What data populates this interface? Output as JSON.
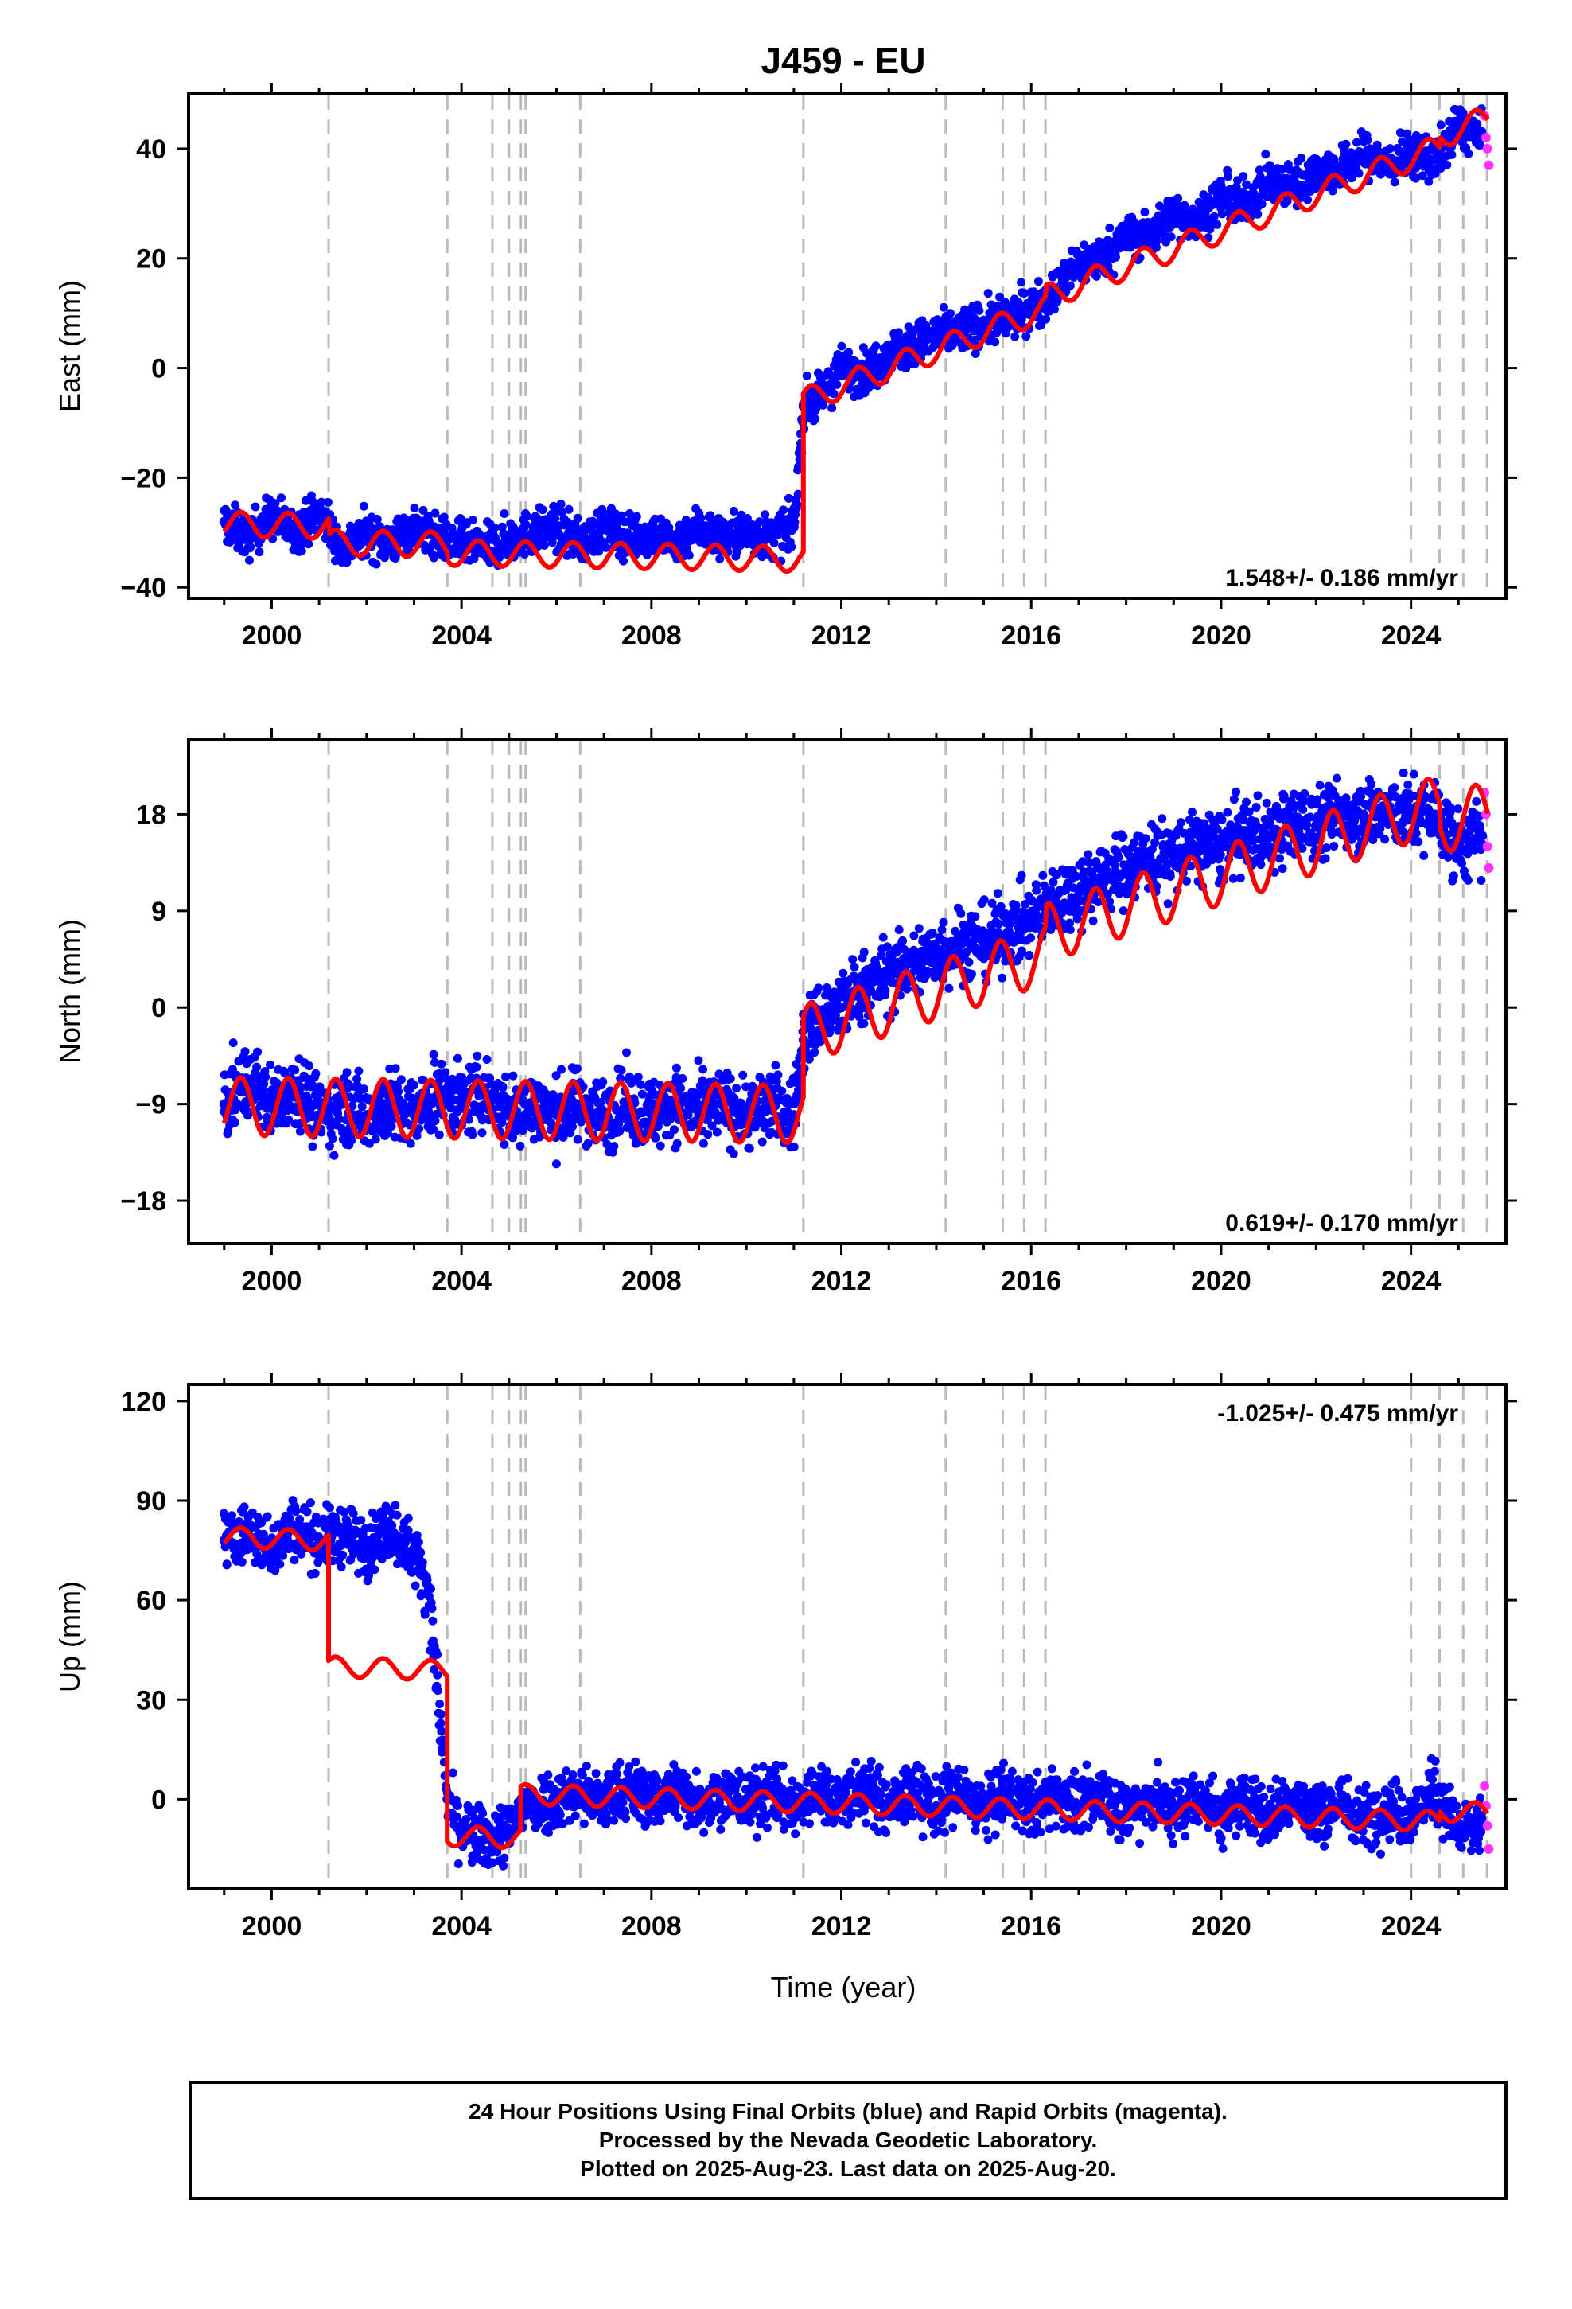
{
  "title": "J459 - EU",
  "xlabel": "Time (year)",
  "caption": {
    "line1": "24 Hour Positions Using Final Orbits (blue) and Rapid Orbits (magenta).",
    "line2": "Processed by the Nevada Geodetic Laboratory.",
    "line3": "Plotted on 2025-Aug-23. Last data on 2025-Aug-20."
  },
  "colors": {
    "final_orbits": "#0000ff",
    "rapid_orbits": "#ff33ff",
    "model": "#ff0000",
    "event_lines": "#bbbbbb",
    "frame": "#000000"
  },
  "chart_data": [
    {
      "type": "scatter",
      "panel": "east",
      "ylabel": "East (mm)",
      "xlim": [
        1998.25,
        2026.0
      ],
      "ylim": [
        -42,
        50
      ],
      "xticks": [
        "2000",
        "2004",
        "2008",
        "2012",
        "2016",
        "2020",
        "2024"
      ],
      "yticks": [
        "40",
        "20",
        "0",
        "−20",
        "−40"
      ],
      "ytick_values": [
        40,
        20,
        0,
        -20,
        -40
      ],
      "rate_label": "1.548+/- 0.186 mm/yr",
      "rate_position": "bottom-right",
      "event_lines": [
        2001.2,
        2003.7,
        2004.65,
        2005.0,
        2005.25,
        2005.35,
        2006.5,
        2011.2,
        2014.2,
        2015.4,
        2015.85,
        2016.3,
        2024.0,
        2024.6,
        2025.1,
        2025.6
      ],
      "series": [
        {
          "name": "Final Orbits",
          "color": "#0000ff",
          "x": [
            1999.0,
            1999.5,
            2000.0,
            2000.5,
            2001.0,
            2001.5,
            2002.0,
            2002.5,
            2003.0,
            2003.5,
            2004.0,
            2004.5,
            2005.0,
            2005.5,
            2006.0,
            2006.5,
            2007.0,
            2007.5,
            2008.0,
            2008.5,
            2009.0,
            2009.5,
            2010.0,
            2010.5,
            2011.0,
            2011.2,
            2011.5,
            2012.0,
            2012.5,
            2013.0,
            2013.5,
            2014.0,
            2014.5,
            2015.0,
            2015.5,
            2016.0,
            2016.5,
            2017.0,
            2017.5,
            2018.0,
            2018.5,
            2019.0,
            2019.5,
            2020.0,
            2020.5,
            2021.0,
            2021.5,
            2022.0,
            2022.5,
            2023.0,
            2023.5,
            2024.0,
            2024.5,
            2025.0,
            2025.5
          ],
          "y": [
            -28,
            -31,
            -27,
            -30,
            -26,
            -33,
            -30,
            -32,
            -29,
            -31,
            -32,
            -33,
            -31,
            -30,
            -29,
            -32,
            -29,
            -31,
            -30,
            -32,
            -29,
            -31,
            -30,
            -31,
            -29,
            -7,
            -6,
            0,
            -1,
            3,
            4,
            6,
            7,
            8,
            9,
            11,
            14,
            19,
            20,
            24,
            24,
            28,
            27,
            31,
            30,
            34,
            33,
            36,
            36,
            39,
            37,
            39,
            38,
            44,
            42
          ],
          "scatter_spread": 3.5
        },
        {
          "name": "Rapid Orbits",
          "color": "#ff33ff",
          "x": [
            2025.55,
            2025.58,
            2025.61,
            2025.64
          ],
          "y": [
            46,
            42,
            40,
            37
          ]
        },
        {
          "name": "Model",
          "color": "#ff0000",
          "trend": [
            {
              "from": 1999.0,
              "to": 2011.2,
              "start": -28.5,
              "rate": -0.15
            },
            {
              "from": 2011.2,
              "to": 2025.62,
              "start": -6.0,
              "rate": 3.3
            }
          ],
          "offsets": [
            {
              "at": 2001.2,
              "dy": -3
            },
            {
              "at": 2003.7,
              "dy": -1.5
            },
            {
              "at": 2016.3,
              "dy": 2
            },
            {
              "at": 2024.6,
              "dy": 2
            }
          ],
          "seasonal_amplitude": 2.3
        }
      ]
    },
    {
      "type": "scatter",
      "panel": "north",
      "ylabel": "North (mm)",
      "xlim": [
        1998.25,
        2026.0
      ],
      "ylim": [
        -22,
        25
      ],
      "xticks": [
        "2000",
        "2004",
        "2008",
        "2012",
        "2016",
        "2020",
        "2024"
      ],
      "yticks": [
        "18",
        "9",
        "0",
        "−9",
        "−18"
      ],
      "ytick_values": [
        18,
        9,
        0,
        -9,
        -18
      ],
      "rate_label": "0.619+/- 0.170 mm/yr",
      "rate_position": "bottom-right",
      "event_lines": [
        2001.2,
        2003.7,
        2004.65,
        2005.0,
        2005.25,
        2005.35,
        2006.5,
        2011.2,
        2014.2,
        2015.4,
        2015.85,
        2016.3,
        2024.0,
        2024.6,
        2025.1,
        2025.6
      ],
      "series": [
        {
          "name": "Final Orbits",
          "color": "#0000ff",
          "x": [
            1999.0,
            1999.5,
            2000.0,
            2000.5,
            2001.0,
            2001.5,
            2002.0,
            2002.5,
            2003.0,
            2003.5,
            2004.0,
            2004.5,
            2005.0,
            2005.5,
            2006.0,
            2006.5,
            2007.0,
            2007.5,
            2008.0,
            2008.5,
            2009.0,
            2009.5,
            2010.0,
            2010.5,
            2011.0,
            2011.2,
            2011.5,
            2012.0,
            2012.5,
            2013.0,
            2013.5,
            2014.0,
            2014.5,
            2015.0,
            2015.5,
            2016.0,
            2016.5,
            2017.0,
            2017.5,
            2018.0,
            2018.5,
            2019.0,
            2019.5,
            2020.0,
            2020.5,
            2021.0,
            2021.5,
            2022.0,
            2022.5,
            2023.0,
            2023.5,
            2024.0,
            2024.5,
            2025.0,
            2025.5
          ],
          "y": [
            -9,
            -7,
            -9,
            -7,
            -10,
            -9,
            -10,
            -9,
            -10,
            -8,
            -9,
            -8,
            -10,
            -9,
            -10,
            -9,
            -10,
            -9,
            -10,
            -9,
            -10,
            -9,
            -10,
            -9,
            -10,
            -3,
            -1,
            0,
            2,
            3,
            4,
            5,
            6,
            6,
            7,
            8,
            10,
            11,
            12,
            13,
            14,
            14,
            15,
            15,
            16,
            16,
            17,
            17,
            18,
            18,
            18,
            18,
            18,
            15,
            16
          ],
          "scatter_spread": 3.0
        },
        {
          "name": "Rapid Orbits",
          "color": "#ff33ff",
          "x": [
            2025.55,
            2025.58,
            2025.61,
            2025.64
          ],
          "y": [
            20,
            18,
            15,
            13
          ]
        },
        {
          "name": "Model",
          "color": "#ff0000",
          "trend": [
            {
              "from": 1999.0,
              "to": 2011.2,
              "start": -9.2,
              "rate": -0.06
            },
            {
              "from": 2011.2,
              "to": 2025.62,
              "start": -2.5,
              "rate": 1.45
            }
          ],
          "offsets": [
            {
              "at": 2016.3,
              "dy": 2
            },
            {
              "at": 2024.6,
              "dy": -2
            }
          ],
          "seasonal_amplitude": 2.7
        }
      ]
    },
    {
      "type": "scatter",
      "panel": "up",
      "ylabel": "Up (mm)",
      "xlim": [
        1998.25,
        2026.0
      ],
      "ylim": [
        -27,
        125
      ],
      "xticks": [
        "2000",
        "2004",
        "2008",
        "2012",
        "2016",
        "2020",
        "2024"
      ],
      "yticks": [
        "120",
        "90",
        "60",
        "30",
        "0"
      ],
      "ytick_values": [
        120,
        90,
        60,
        30,
        0
      ],
      "rate_label": "-1.025+/- 0.475 mm/yr",
      "rate_position": "top-right",
      "event_lines": [
        2001.2,
        2003.7,
        2004.65,
        2005.0,
        2005.25,
        2005.35,
        2006.5,
        2011.2,
        2014.2,
        2015.4,
        2015.85,
        2016.3,
        2024.0,
        2024.6,
        2025.1,
        2025.6
      ],
      "series": [
        {
          "name": "Final Orbits",
          "color": "#0000ff",
          "x": [
            1999.0,
            1999.5,
            2000.0,
            2000.5,
            2001.0,
            2001.5,
            2002.0,
            2002.5,
            2003.0,
            2003.3,
            2003.7,
            2004.0,
            2004.5,
            2005.0,
            2005.3,
            2006.0,
            2006.5,
            2007.0,
            2007.5,
            2008.0,
            2008.5,
            2009.0,
            2009.5,
            2010.0,
            2010.5,
            2011.0,
            2011.5,
            2012.0,
            2012.5,
            2013.0,
            2013.5,
            2014.0,
            2014.5,
            2015.0,
            2015.5,
            2016.0,
            2016.5,
            2017.0,
            2017.5,
            2018.0,
            2018.5,
            2019.0,
            2019.5,
            2020.0,
            2020.5,
            2021.0,
            2021.5,
            2022.0,
            2022.5,
            2023.0,
            2023.5,
            2024.0,
            2024.5,
            2025.0,
            2025.5
          ],
          "y": [
            78,
            80,
            76,
            82,
            78,
            80,
            76,
            82,
            74,
            64,
            0,
            -10,
            -12,
            -10,
            -2,
            0,
            2,
            -1,
            3,
            0,
            3,
            -1,
            2,
            -1,
            2,
            -2,
            2,
            0,
            3,
            -2,
            2,
            -2,
            2,
            -3,
            2,
            -3,
            2,
            -3,
            2,
            -4,
            1,
            -4,
            1,
            -5,
            0,
            -5,
            0,
            -5,
            -1,
            -6,
            -2,
            -6,
            3,
            -10,
            -8
          ],
          "scatter_spread": 8.0
        },
        {
          "name": "Rapid Orbits",
          "color": "#ff33ff",
          "x": [
            2025.55,
            2025.58,
            2025.61,
            2025.64
          ],
          "y": [
            4,
            -2,
            -8,
            -15
          ]
        },
        {
          "name": "Model",
          "color": "#ff0000",
          "trend": [
            {
              "from": 1999.0,
              "to": 2001.2,
              "start": 79,
              "rate": -0.5
            },
            {
              "from": 2001.2,
              "to": 2003.7,
              "start": 40,
              "rate": -0.5
            },
            {
              "from": 2003.7,
              "to": 2005.25,
              "start": -11,
              "rate": -0.5
            },
            {
              "from": 2005.25,
              "to": 2025.62,
              "start": 1.5,
              "rate": -0.42
            }
          ],
          "offsets": [
            {
              "at": 2024.6,
              "dy": 3
            }
          ],
          "seasonal_amplitude": 3.0
        }
      ]
    }
  ]
}
